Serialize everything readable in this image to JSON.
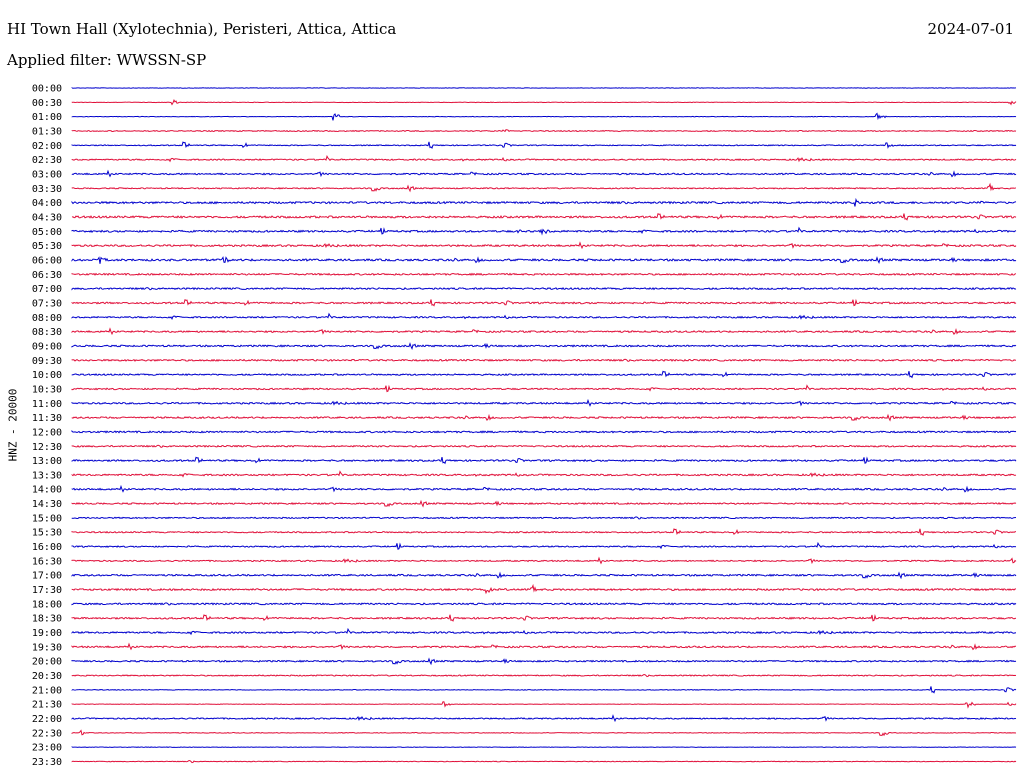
{
  "header": {
    "station": "HI Town Hall (Xylotechnia), Peristeri, Attica, Attica",
    "date": "2024-07-01",
    "filter": "Applied filter: WWSSN-SP"
  },
  "colors": {
    "blue": "#0000cc",
    "red": "#e0103a"
  },
  "chart_data": {
    "type": "line",
    "ylabel": "HNZ - 20000",
    "trace_labels": [
      "00:00",
      "00:30",
      "01:00",
      "01:30",
      "02:00",
      "02:30",
      "03:00",
      "03:30",
      "04:00",
      "04:30",
      "05:00",
      "05:30",
      "06:00",
      "06:30",
      "07:00",
      "07:30",
      "08:00",
      "08:30",
      "09:00",
      "09:30",
      "10:00",
      "10:30",
      "11:00",
      "11:30",
      "12:00",
      "12:30",
      "13:00",
      "13:30",
      "14:00",
      "14:30",
      "15:00",
      "15:30",
      "16:00",
      "16:30",
      "17:00",
      "17:30",
      "18:00",
      "18:30",
      "19:00",
      "19:30",
      "20:00",
      "20:30",
      "21:00",
      "21:30",
      "22:00",
      "22:30",
      "23:00",
      "23:30"
    ],
    "trace_colors": [
      "blue",
      "red"
    ],
    "noise_level": [
      0.3,
      0.3,
      0.3,
      0.6,
      0.6,
      0.8,
      0.9,
      0.7,
      1.2,
      1.2,
      1.1,
      1.1,
      1.2,
      1.0,
      1.0,
      1.0,
      0.9,
      1.0,
      1.0,
      1.0,
      0.9,
      0.9,
      1.0,
      1.0,
      1.0,
      0.9,
      1.0,
      1.0,
      1.0,
      0.9,
      0.8,
      0.8,
      0.8,
      0.8,
      1.0,
      1.1,
      1.0,
      1.0,
      1.0,
      1.0,
      0.9,
      0.7,
      0.4,
      0.3,
      0.8,
      0.4,
      0.3,
      0.4
    ]
  }
}
